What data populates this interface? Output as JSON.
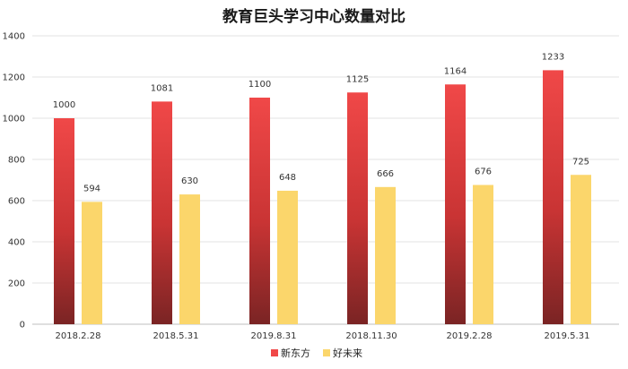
{
  "chart_data": {
    "type": "bar",
    "title": "教育巨头学习中心数量对比",
    "categories": [
      "2018.2.28",
      "2018.5.31",
      "2019.8.31",
      "2018.11.30",
      "2019.2.28",
      "2019.5.31"
    ],
    "series": [
      {
        "name": "新东方",
        "values": [
          1000,
          1081,
          1100,
          1125,
          1164,
          1233
        ],
        "color_top": "#f04848",
        "color_bottom": "#7a2424"
      },
      {
        "name": "好未来",
        "values": [
          594,
          630,
          648,
          666,
          676,
          725
        ],
        "color": "#fbd66b"
      }
    ],
    "ylim": [
      0,
      1400
    ],
    "yticks": [
      0,
      200,
      400,
      600,
      800,
      1000,
      1200,
      1400
    ],
    "grid": true,
    "legend": "bottom-center",
    "xlabel": "",
    "ylabel": ""
  }
}
